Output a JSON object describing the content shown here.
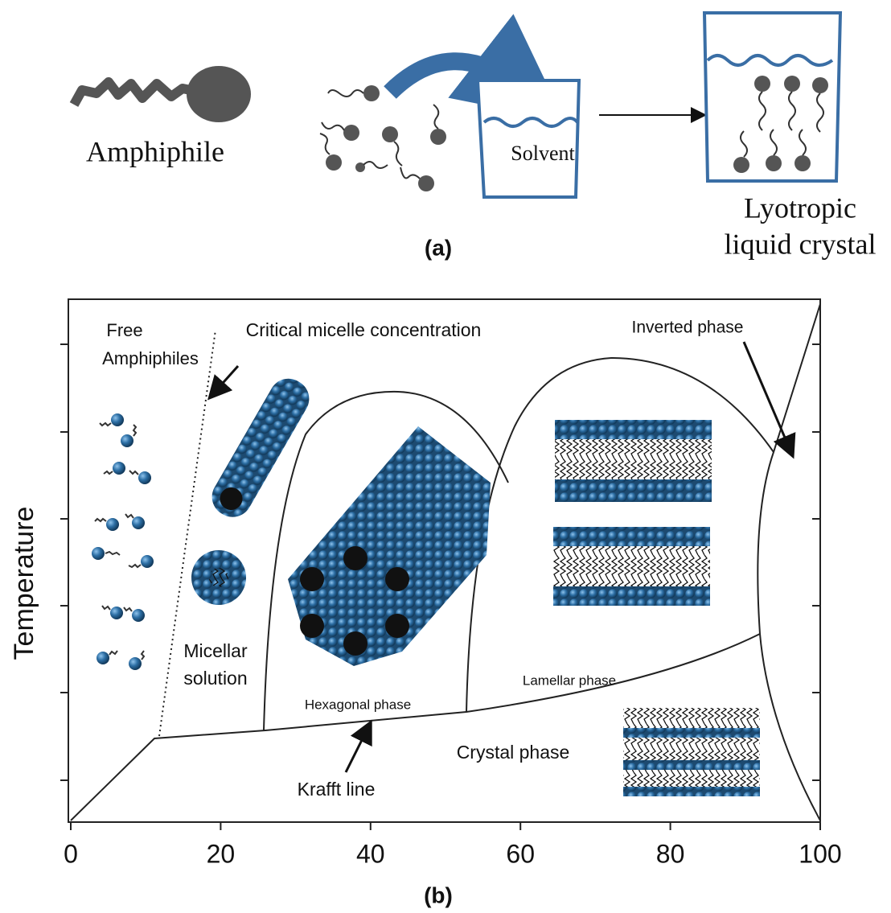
{
  "panel_a": {
    "amphiphile": "Amphiphile",
    "solvent": "Solvent",
    "product": [
      "Lyotropic",
      "liquid crystal"
    ],
    "caption": "(a)"
  },
  "panel_b": {
    "y_label": "Temperature",
    "xlim": [
      0,
      100
    ],
    "xticks": [
      0,
      20,
      40,
      60,
      80,
      100
    ],
    "labels": {
      "free": [
        "Free",
        "Amphiphiles"
      ],
      "cmc": "Critical micelle concentration",
      "inverted": "Inverted phase",
      "micellar": [
        "Micellar",
        "solution"
      ],
      "hexagonal": "Hexagonal phase",
      "lamellar": "Lamellar phase",
      "crystal": "Crystal phase",
      "krafft": "Krafft line"
    },
    "caption": "(b)"
  }
}
